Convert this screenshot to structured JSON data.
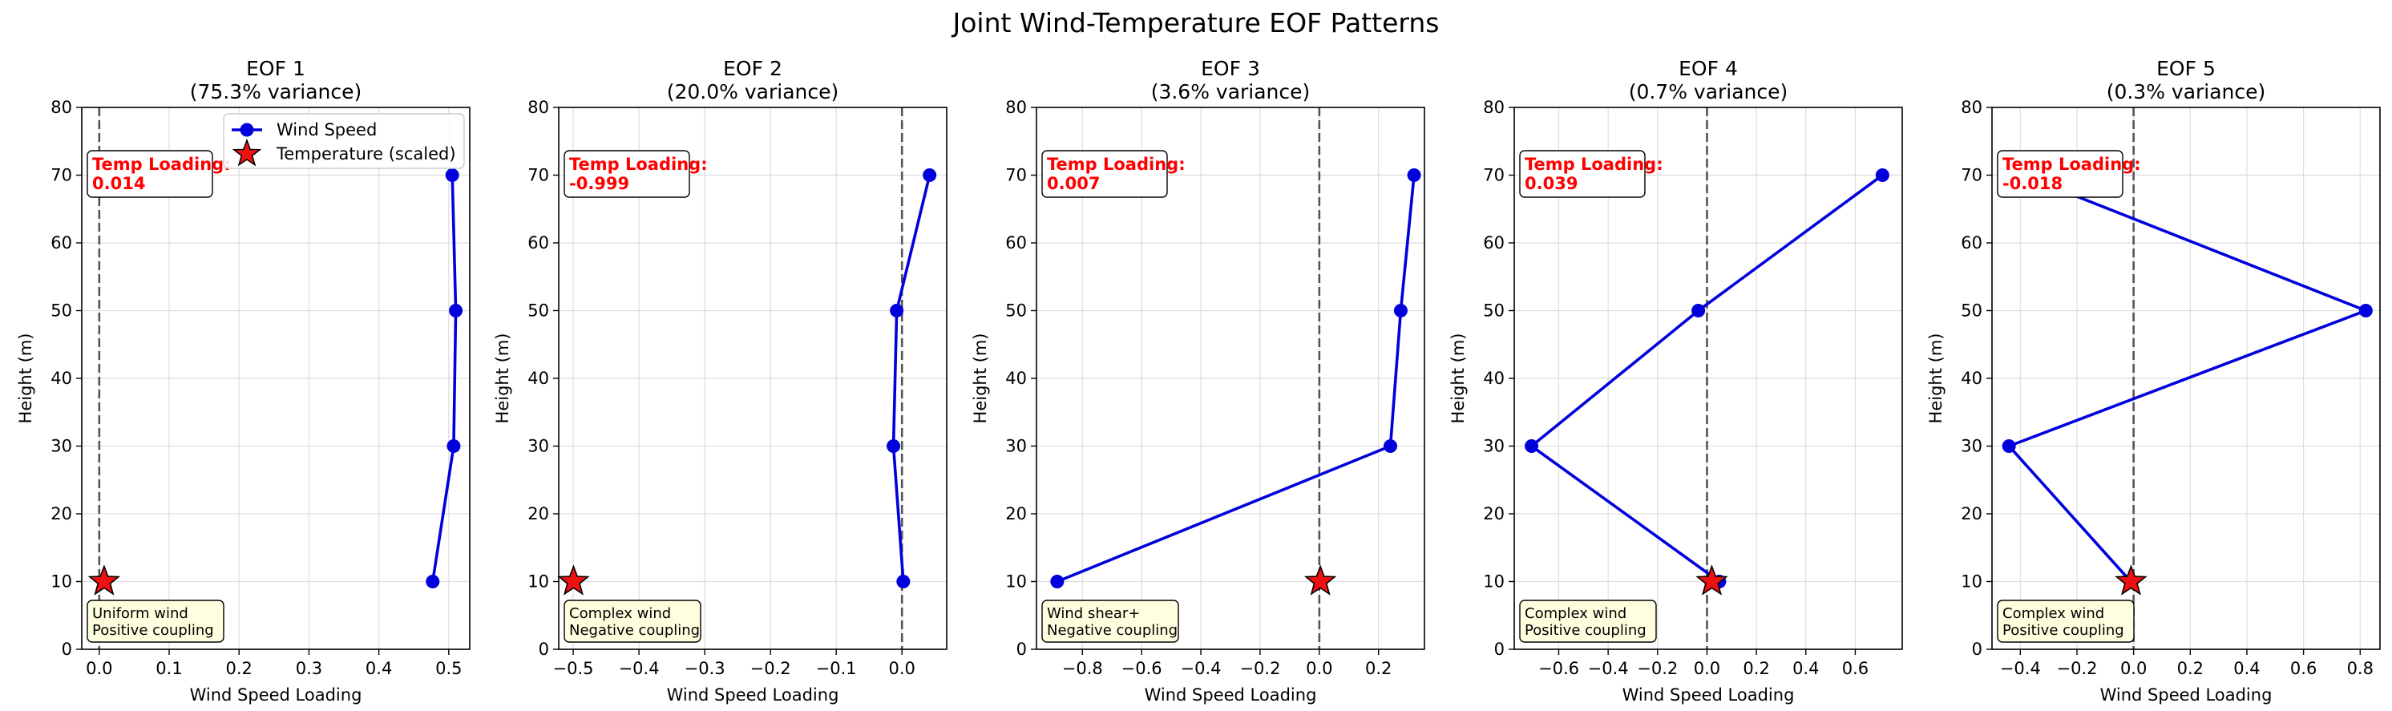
{
  "figure": {
    "suptitle": "Joint Wind-Temperature EOF Patterns"
  },
  "legend": {
    "wind_label": "Wind Speed",
    "temp_label": "Temperature (scaled)"
  },
  "colors": {
    "wind": "#0000dd",
    "temp": "#ee1111",
    "temp_text": "#ff0000",
    "note_bg": "#ffffe0",
    "grid": "#dddddd",
    "zero_line": "#555555"
  },
  "chart_data": [
    {
      "type": "line",
      "title": "EOF 1",
      "subtitle": "(75.3% variance)",
      "xlabel": "Wind Speed Loading",
      "ylabel": "Height (m)",
      "xlim": [
        -0.025,
        0.53
      ],
      "xticks": [
        0.0,
        0.1,
        0.2,
        0.3,
        0.4,
        0.5
      ],
      "xtick_labels": [
        "0.0",
        "0.1",
        "0.2",
        "0.3",
        "0.4",
        "0.5"
      ],
      "ylim": [
        0,
        80
      ],
      "yticks": [
        0,
        10,
        20,
        30,
        40,
        50,
        60,
        70,
        80
      ],
      "ytick_labels": [
        "0",
        "10",
        "20",
        "30",
        "40",
        "50",
        "60",
        "70",
        "80"
      ],
      "grid": true,
      "legend_position": "top-right",
      "series": [
        {
          "name": "Wind Speed",
          "x": [
            0.477,
            0.507,
            0.51,
            0.505
          ],
          "y": [
            10,
            30,
            50,
            70
          ]
        },
        {
          "name": "Temperature (scaled)",
          "x": [
            0.007
          ],
          "y": [
            10
          ]
        }
      ],
      "temp_loading_label": "Temp Loading:",
      "temp_loading_value": "0.014",
      "note_line1": "Uniform wind",
      "note_line2": "Positive coupling"
    },
    {
      "type": "line",
      "title": "EOF 2",
      "subtitle": "(20.0% variance)",
      "xlabel": "Wind Speed Loading",
      "ylabel": "Height (m)",
      "xlim": [
        -0.522,
        0.068
      ],
      "xticks": [
        -0.5,
        -0.4,
        -0.3,
        -0.2,
        -0.1,
        0.0
      ],
      "xtick_labels": [
        "−0.5",
        "−0.4",
        "−0.3",
        "−0.2",
        "−0.1",
        "0.0"
      ],
      "ylim": [
        0,
        80
      ],
      "yticks": [
        0,
        10,
        20,
        30,
        40,
        50,
        60,
        70,
        80
      ],
      "ytick_labels": [
        "0",
        "10",
        "20",
        "30",
        "40",
        "50",
        "60",
        "70",
        "80"
      ],
      "grid": true,
      "series": [
        {
          "name": "Wind Speed",
          "x": [
            0.002,
            -0.013,
            -0.008,
            0.042
          ],
          "y": [
            10,
            30,
            50,
            70
          ]
        },
        {
          "name": "Temperature (scaled)",
          "x": [
            -0.4995
          ],
          "y": [
            10
          ]
        }
      ],
      "temp_loading_label": "Temp Loading:",
      "temp_loading_value": "-0.999",
      "note_line1": "Complex wind",
      "note_line2": "Negative coupling"
    },
    {
      "type": "line",
      "title": "EOF 3",
      "subtitle": "(3.6% variance)",
      "xlabel": "Wind Speed Loading",
      "ylabel": "Height (m)",
      "xlim": [
        -0.955,
        0.355
      ],
      "xticks": [
        -0.8,
        -0.6,
        -0.4,
        -0.2,
        0.0,
        0.2
      ],
      "xtick_labels": [
        "−0.8",
        "−0.6",
        "−0.4",
        "−0.2",
        "0.0",
        "0.2"
      ],
      "ylim": [
        0,
        80
      ],
      "yticks": [
        0,
        10,
        20,
        30,
        40,
        50,
        60,
        70,
        80
      ],
      "ytick_labels": [
        "0",
        "10",
        "20",
        "30",
        "40",
        "50",
        "60",
        "70",
        "80"
      ],
      "grid": true,
      "series": [
        {
          "name": "Wind Speed",
          "x": [
            -0.885,
            0.24,
            0.275,
            0.32
          ],
          "y": [
            10,
            30,
            50,
            70
          ]
        },
        {
          "name": "Temperature (scaled)",
          "x": [
            0.0035
          ],
          "y": [
            10
          ]
        }
      ],
      "temp_loading_label": "Temp Loading:",
      "temp_loading_value": "0.007",
      "note_line1": "Wind shear+",
      "note_line2": "Negative coupling"
    },
    {
      "type": "line",
      "title": "EOF 4",
      "subtitle": "(0.7% variance)",
      "xlabel": "Wind Speed Loading",
      "ylabel": "Height (m)",
      "xlim": [
        -0.78,
        0.79
      ],
      "xticks": [
        -0.6,
        -0.4,
        -0.2,
        0.0,
        0.2,
        0.4,
        0.6
      ],
      "xtick_labels": [
        "−0.6",
        "−0.4",
        "−0.2",
        "0.0",
        "0.2",
        "0.4",
        "0.6"
      ],
      "ylim": [
        0,
        80
      ],
      "yticks": [
        0,
        10,
        20,
        30,
        40,
        50,
        60,
        70,
        80
      ],
      "ytick_labels": [
        "0",
        "10",
        "20",
        "30",
        "40",
        "50",
        "60",
        "70",
        "80"
      ],
      "grid": true,
      "series": [
        {
          "name": "Wind Speed",
          "x": [
            0.05,
            -0.71,
            -0.035,
            0.71
          ],
          "y": [
            10,
            30,
            50,
            70
          ]
        },
        {
          "name": "Temperature (scaled)",
          "x": [
            0.0195
          ],
          "y": [
            10
          ]
        }
      ],
      "temp_loading_label": "Temp Loading:",
      "temp_loading_value": "0.039",
      "note_line1": "Complex wind",
      "note_line2": "Positive coupling"
    },
    {
      "type": "line",
      "title": "EOF 5",
      "subtitle": "(0.3% variance)",
      "xlabel": "Wind Speed Loading",
      "ylabel": "Height (m)",
      "xlim": [
        -0.5,
        0.87
      ],
      "xticks": [
        -0.4,
        -0.2,
        0.0,
        0.2,
        0.4,
        0.6,
        0.8
      ],
      "xtick_labels": [
        "−0.4",
        "−0.2",
        "0.0",
        "0.2",
        "0.4",
        "0.6",
        "0.8"
      ],
      "ylim": [
        0,
        80
      ],
      "yticks": [
        0,
        10,
        20,
        30,
        40,
        50,
        60,
        70,
        80
      ],
      "ytick_labels": [
        "0",
        "10",
        "20",
        "30",
        "40",
        "50",
        "60",
        "70",
        "80"
      ],
      "grid": true,
      "series": [
        {
          "name": "Wind Speed",
          "x": [
            -0.01,
            -0.44,
            0.82,
            -0.39
          ],
          "y": [
            10,
            30,
            50,
            70
          ]
        },
        {
          "name": "Temperature (scaled)",
          "x": [
            -0.009
          ],
          "y": [
            10
          ]
        }
      ],
      "temp_loading_label": "Temp Loading:",
      "temp_loading_value": "-0.018",
      "note_line1": "Complex wind",
      "note_line2": "Positive coupling"
    }
  ]
}
